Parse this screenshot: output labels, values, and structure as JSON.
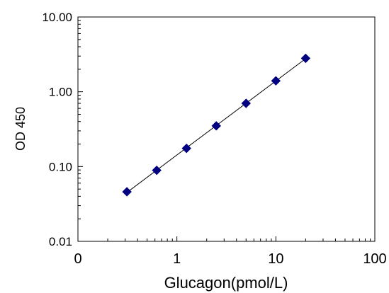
{
  "chart_data": {
    "type": "scatter",
    "title": "",
    "xlabel": "Glucagon(pmol/L)",
    "ylabel": "OD 450",
    "xscale": "log",
    "yscale": "log",
    "xlim": [
      0.1,
      100
    ],
    "ylim": [
      0.01,
      10
    ],
    "x_tick_values": [
      0.1,
      1,
      10,
      100
    ],
    "x_tick_labels": [
      "0",
      "1",
      "10",
      "100"
    ],
    "y_tick_values": [
      0.01,
      0.1,
      1,
      10
    ],
    "y_tick_labels": [
      "0.01",
      "0.10",
      "1.00",
      "10.00"
    ],
    "grid": false,
    "legend": "none",
    "marker": "diamond",
    "marker_color": "#000080",
    "trendline": "power fit through points",
    "series": [
      {
        "x": [
          0.3125,
          0.625,
          1.25,
          2.5,
          5,
          10,
          20
        ],
        "y": [
          0.046,
          0.089,
          0.175,
          0.35,
          0.7,
          1.4,
          2.8
        ]
      }
    ]
  }
}
